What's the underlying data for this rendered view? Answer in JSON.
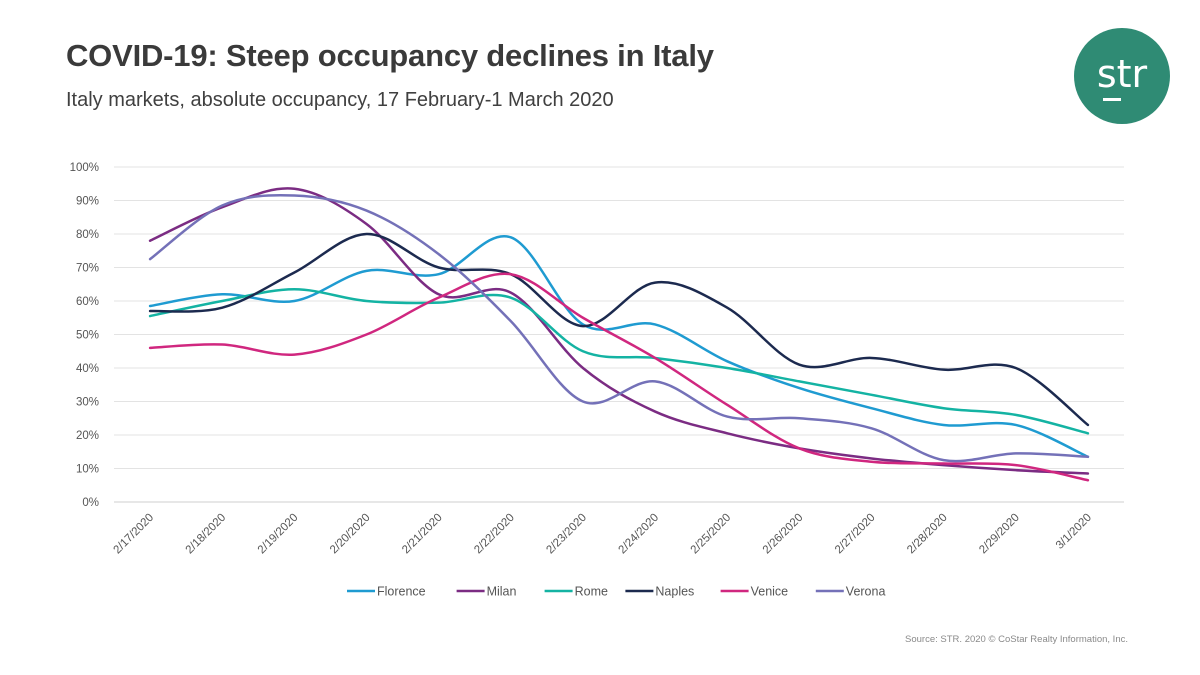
{
  "title": "COVID-19: Steep occupancy declines in Italy",
  "subtitle": "Italy markets, absolute occupancy, 17 February-1 March 2020",
  "logo_text": "str",
  "source": "Source: STR. 2020 © CoStar Realty Information, Inc.",
  "chart_data": {
    "type": "line",
    "title": "COVID-19: Steep occupancy declines in Italy",
    "subtitle": "Italy markets, absolute occupancy, 17 February-1 March 2020",
    "xlabel": "",
    "ylabel": "",
    "ylim": [
      0,
      100
    ],
    "grid": true,
    "legend_position": "bottom",
    "y_ticks": [
      "0%",
      "10%",
      "20%",
      "30%",
      "40%",
      "50%",
      "60%",
      "70%",
      "80%",
      "90%",
      "100%"
    ],
    "categories": [
      "2/17/2020",
      "2/18/2020",
      "2/19/2020",
      "2/20/2020",
      "2/21/2020",
      "2/22/2020",
      "2/23/2020",
      "2/24/2020",
      "2/25/2020",
      "2/26/2020",
      "2/27/2020",
      "2/28/2020",
      "2/29/2020",
      "3/1/2020"
    ],
    "series": [
      {
        "name": "Florence",
        "color": "#1f9bd1",
        "values": [
          58.5,
          62,
          60,
          69,
          68,
          79,
          53,
          53,
          42,
          34,
          28,
          23,
          23,
          13.5
        ]
      },
      {
        "name": "Milan",
        "color": "#7b2c83",
        "values": [
          78,
          88,
          93.5,
          83,
          62,
          62.5,
          40,
          27,
          20.5,
          16,
          13,
          11,
          9.5,
          8.5
        ]
      },
      {
        "name": "Rome",
        "color": "#14b3a3",
        "values": [
          55.5,
          60,
          63.5,
          60,
          59.5,
          61,
          45,
          43,
          40,
          36,
          32,
          28,
          26,
          20.5
        ]
      },
      {
        "name": "Naples",
        "color": "#1c2a4f",
        "values": [
          57,
          58,
          68.5,
          80,
          70,
          68,
          52.5,
          65.5,
          58,
          41,
          43,
          39.5,
          40,
          23
        ]
      },
      {
        "name": "Venice",
        "color": "#d0277f",
        "values": [
          46,
          47,
          44,
          50,
          61,
          68,
          55,
          43,
          29,
          16,
          12,
          11.5,
          11,
          6.5
        ]
      },
      {
        "name": "Verona",
        "color": "#7471b8",
        "values": [
          72.5,
          88.5,
          91.5,
          87,
          74,
          54,
          30,
          36,
          25.5,
          25,
          22,
          12.5,
          14.5,
          13.5
        ]
      }
    ]
  }
}
